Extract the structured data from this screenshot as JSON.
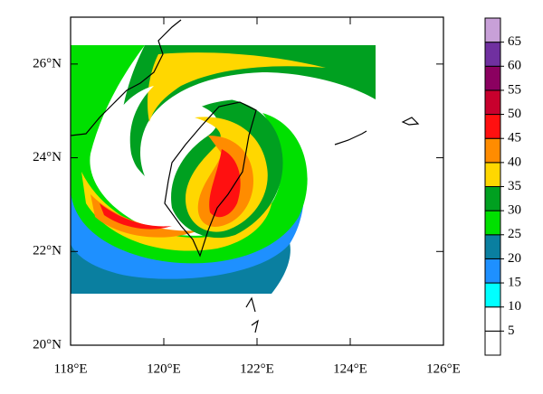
{
  "map": {
    "xlim": [
      118,
      126
    ],
    "ylim": [
      20,
      27
    ],
    "xticks": [
      {
        "value": 118,
        "label": "118°E"
      },
      {
        "value": 120,
        "label": "120°E"
      },
      {
        "value": 122,
        "label": "122°E"
      },
      {
        "value": 124,
        "label": "124°E"
      },
      {
        "value": 126,
        "label": "126°E"
      }
    ],
    "yticks": [
      {
        "value": 20,
        "label": "20°N"
      },
      {
        "value": 22,
        "label": "22°N"
      },
      {
        "value": 24,
        "label": "24°N"
      },
      {
        "value": 26,
        "label": "26°N"
      }
    ],
    "colorbar": {
      "levels": [
        5,
        10,
        15,
        20,
        25,
        30,
        35,
        40,
        45,
        50,
        55,
        60,
        65
      ],
      "colors": [
        "#ffffff",
        "#ffffff",
        "#00ffff",
        "#1e90ff",
        "#0a7fa0",
        "#00e000",
        "#00a020",
        "#ffd700",
        "#ff8c00",
        "#ff1010",
        "#c8002d",
        "#8b0060",
        "#7030a0",
        "#c8a0d8"
      ]
    }
  }
}
